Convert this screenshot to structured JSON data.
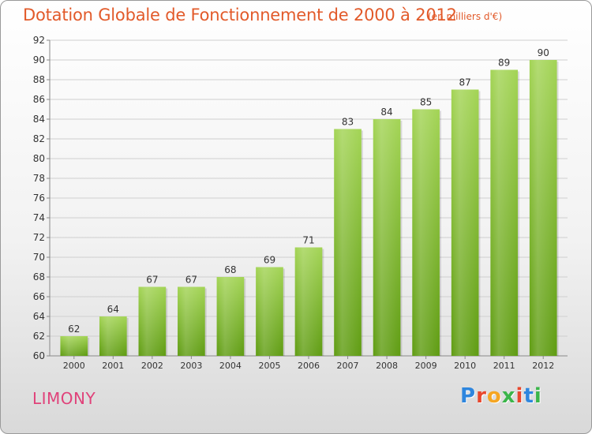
{
  "title": "Dotation Globale de Fonctionnement de 2000 à 2012",
  "subtitle": "(en milliers d'€)",
  "place": "LIMONY",
  "logo": {
    "letters": [
      "P",
      "r",
      "o",
      "x",
      "i",
      "t",
      "i"
    ],
    "colors": [
      "#2e86de",
      "#e8472d",
      "#f5a623",
      "#3bb54a",
      "#e8472d",
      "#2e86de",
      "#3bb54a"
    ]
  },
  "colors": {
    "title": "#e25a2a",
    "place": "#e0427a",
    "bar_top": "#a3d455",
    "bar_bottom": "#5f9c12",
    "grid": "#cfcfcf",
    "axis_text": "#333333"
  },
  "chart_data": {
    "type": "bar",
    "title": "Dotation Globale de Fonctionnement de 2000 à 2012",
    "subtitle": "(en milliers d'€)",
    "xlabel": "",
    "ylabel": "",
    "categories": [
      "2000",
      "2001",
      "2002",
      "2003",
      "2004",
      "2005",
      "2006",
      "2007",
      "2008",
      "2009",
      "2010",
      "2011",
      "2012"
    ],
    "values": [
      62,
      64,
      67,
      67,
      68,
      69,
      71,
      83,
      84,
      85,
      87,
      89,
      90
    ],
    "ylim": [
      60,
      92
    ],
    "yticks": [
      60,
      62,
      64,
      66,
      68,
      70,
      72,
      74,
      76,
      78,
      80,
      82,
      84,
      86,
      88,
      90,
      92
    ],
    "grid": true,
    "legend": "none"
  }
}
